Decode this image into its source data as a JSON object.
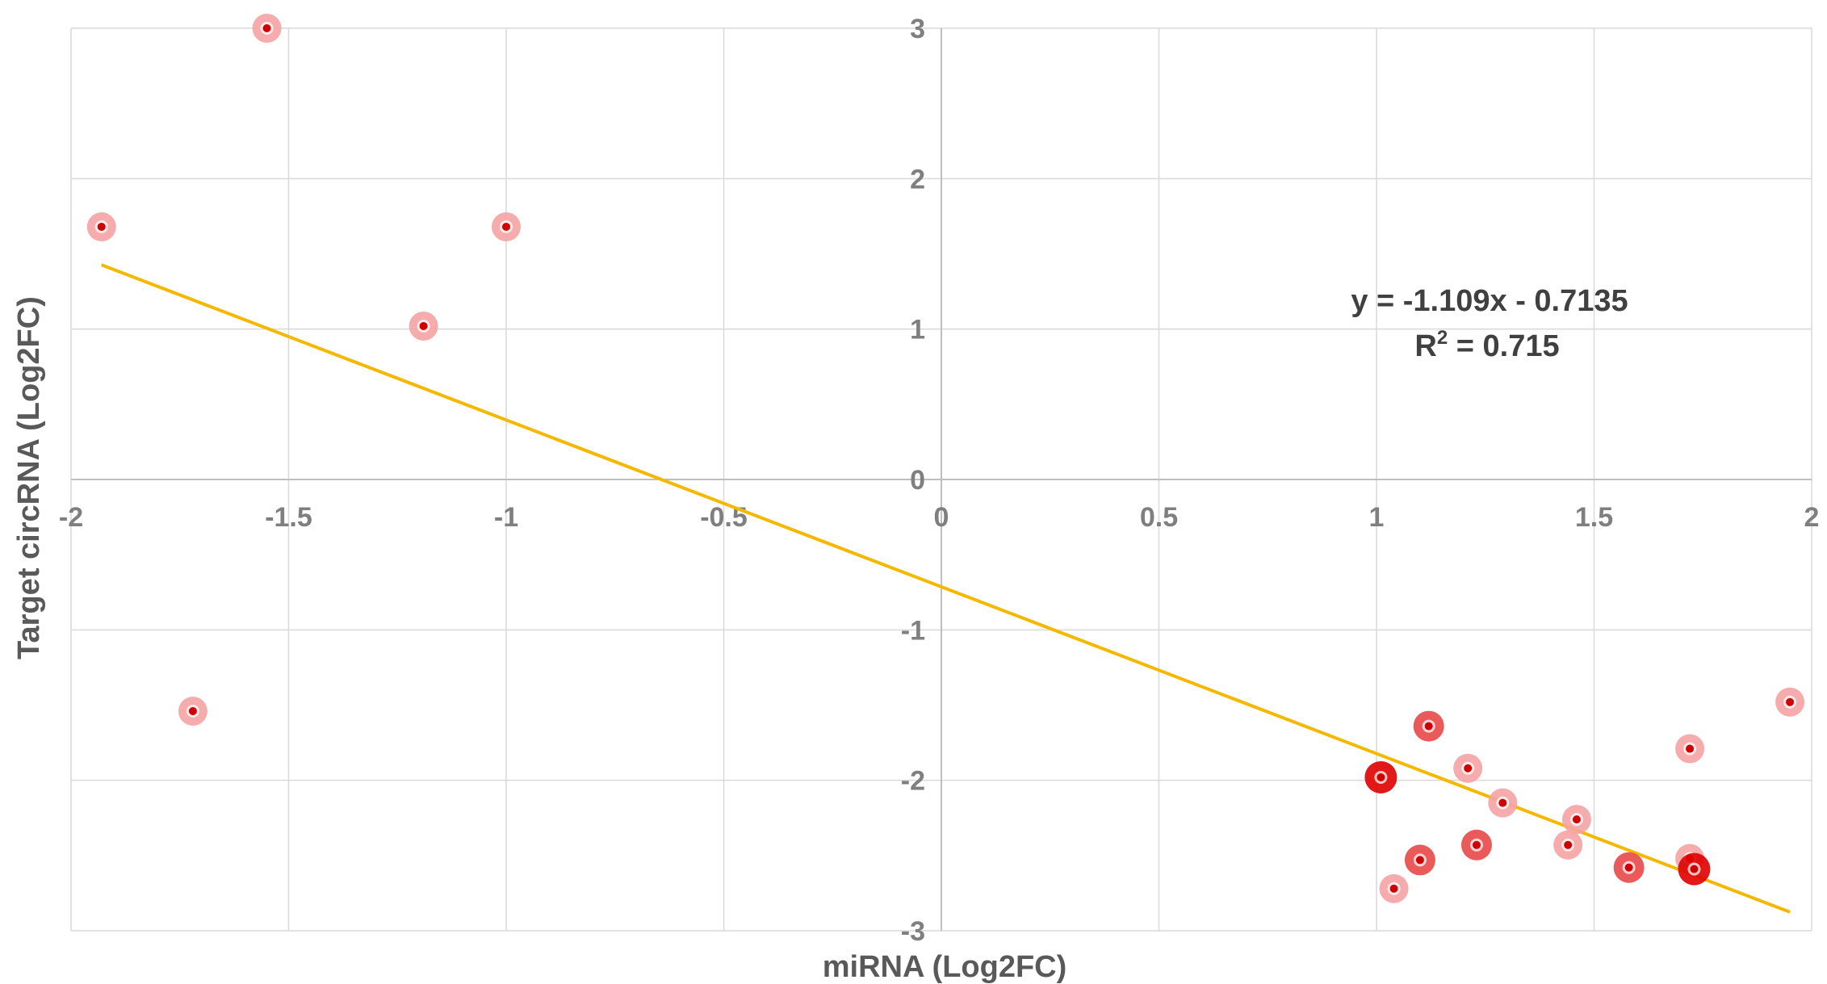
{
  "chart_data": {
    "type": "scatter",
    "xlabel": "miRNA (Log2FC)",
    "ylabel": "Target circRNA (Log2FC)",
    "xlim": [
      -2,
      2
    ],
    "ylim": [
      -3,
      3
    ],
    "x_ticks": [
      -2,
      -1.5,
      -1,
      -0.5,
      0,
      0.5,
      1,
      1.5,
      2
    ],
    "y_ticks": [
      -3,
      -2,
      -1,
      0,
      1,
      2,
      3
    ],
    "x_tick_labels": [
      "-2",
      "-1.5",
      "-1",
      "-0.5",
      "0",
      "0.5",
      "1",
      "1.5",
      "2"
    ],
    "y_tick_labels": [
      "-3",
      "-2",
      "-1",
      "0",
      "1",
      "2",
      "3"
    ],
    "grid": true,
    "trendline": {
      "slope": -1.109,
      "intercept": -0.7135,
      "x_range": [
        -1.93,
        1.95
      ],
      "color": "#f5b800",
      "equation": "y = -1.109x - 0.7135",
      "r2_label": "R",
      "r2_sup": "2",
      "r2_value": " = 0.715"
    },
    "colors": {
      "light": "#f5a3a3",
      "medium": "#e84848",
      "dark": "#e00000",
      "center": "#d00000"
    },
    "points": [
      {
        "x": -1.93,
        "y": 1.68,
        "shade": "light"
      },
      {
        "x": -1.55,
        "y": 3.0,
        "shade": "light"
      },
      {
        "x": -1.72,
        "y": -1.54,
        "shade": "light"
      },
      {
        "x": -1.19,
        "y": 1.02,
        "shade": "light"
      },
      {
        "x": -1.0,
        "y": 1.68,
        "shade": "light"
      },
      {
        "x": 1.01,
        "y": -1.98,
        "shade": "dark"
      },
      {
        "x": 1.04,
        "y": -2.72,
        "shade": "light"
      },
      {
        "x": 1.1,
        "y": -2.53,
        "shade": "medium"
      },
      {
        "x": 1.12,
        "y": -1.64,
        "shade": "medium"
      },
      {
        "x": 1.21,
        "y": -1.92,
        "shade": "light"
      },
      {
        "x": 1.23,
        "y": -2.43,
        "shade": "medium"
      },
      {
        "x": 1.29,
        "y": -2.15,
        "shade": "light"
      },
      {
        "x": 1.44,
        "y": -2.43,
        "shade": "light"
      },
      {
        "x": 1.46,
        "y": -2.26,
        "shade": "light"
      },
      {
        "x": 1.58,
        "y": -2.58,
        "shade": "medium"
      },
      {
        "x": 1.72,
        "y": -1.79,
        "shade": "light"
      },
      {
        "x": 1.72,
        "y": -2.52,
        "shade": "light"
      },
      {
        "x": 1.73,
        "y": -2.59,
        "shade": "dark"
      },
      {
        "x": 1.95,
        "y": -1.48,
        "shade": "light"
      }
    ]
  }
}
